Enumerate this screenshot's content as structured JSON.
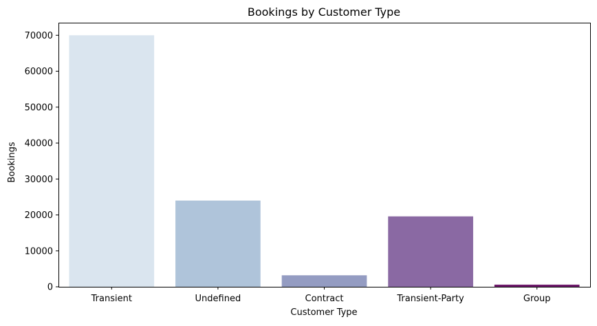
{
  "chart_data": {
    "type": "bar",
    "title": "Bookings by Customer Type",
    "xlabel": "Customer Type",
    "ylabel": "Bookings",
    "categories": [
      "Transient",
      "Undefined",
      "Contract",
      "Transient-Party",
      "Group"
    ],
    "values": [
      70000,
      24000,
      3200,
      19600,
      600
    ],
    "colors": [
      "#dae5ef",
      "#afc4da",
      "#949cc2",
      "#8a69a3",
      "#6e1a6b"
    ],
    "ylim": [
      0,
      73500
    ],
    "yticks": [
      0,
      10000,
      20000,
      30000,
      40000,
      50000,
      60000,
      70000
    ],
    "grid": false,
    "legend": "none"
  }
}
